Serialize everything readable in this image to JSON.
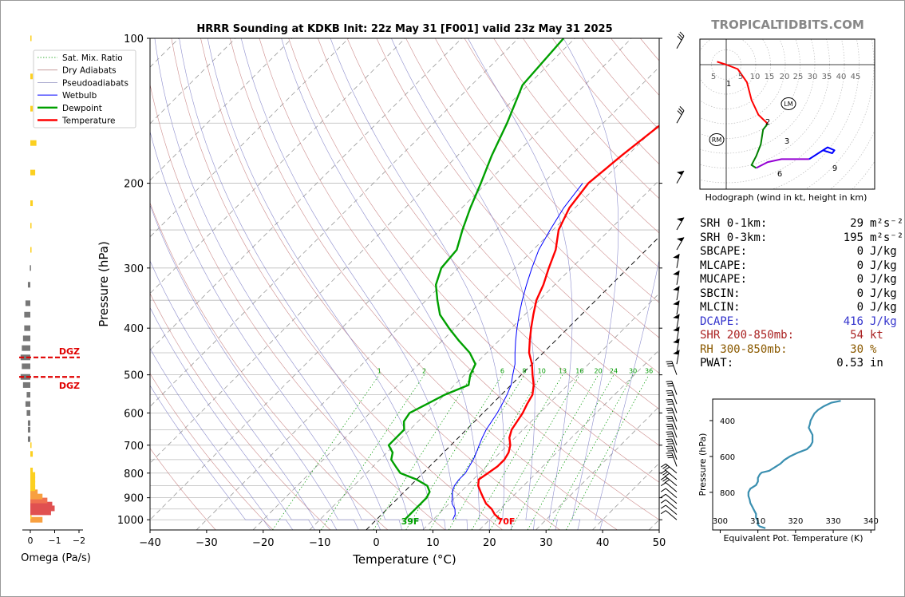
{
  "chart_data": [
    {
      "type": "skewt",
      "title": "HRRR Sounding at KDKB Init: 22z May 31 [F001] valid 23z May 31 2025",
      "xlabel": "Temperature (°C)",
      "ylabel": "Pressure (hPa)",
      "xlim": [
        -40,
        50
      ],
      "ylim": [
        1050,
        100
      ],
      "xticks": [
        "−40",
        "−30",
        "−20",
        "−10",
        "0",
        "10",
        "20",
        "30",
        "40",
        "50"
      ],
      "yticks": [
        "100",
        "200",
        "300",
        "400",
        "500",
        "600",
        "700",
        "800",
        "900",
        "1000"
      ],
      "legend": [
        "Sat. Mix. Ratio",
        "Dry Adiabats",
        "Pseudoadiabats",
        "Wetbulb",
        "Dewpoint",
        "Temperature"
      ],
      "legend_position": "top-left",
      "mixing_ratio_labels": [
        "1",
        "2",
        "4",
        "6",
        "8",
        "10",
        "13",
        "16",
        "20",
        "24",
        "30",
        "36"
      ],
      "temperature": {
        "p": [
          1000,
          975,
          950,
          925,
          900,
          875,
          850,
          825,
          800,
          775,
          750,
          725,
          700,
          675,
          650,
          625,
          600,
          575,
          550,
          525,
          500,
          475,
          450,
          425,
          400,
          375,
          350,
          325,
          300,
          275,
          250,
          225,
          200,
          175,
          150,
          125,
          100
        ],
        "t": [
          22,
          20,
          18.5,
          16.5,
          15,
          13.5,
          12,
          11,
          11.5,
          12,
          12,
          11.5,
          10.5,
          9,
          8,
          7.5,
          7,
          6.2,
          5.5,
          4,
          2,
          0,
          -2.5,
          -4.5,
          -6.5,
          -8.5,
          -10.5,
          -12,
          -14,
          -16,
          -19,
          -21,
          -22,
          -21,
          -19.5,
          -18.5,
          -16
        ]
      },
      "dewpoint": {
        "p": [
          1000,
          975,
          950,
          925,
          900,
          875,
          850,
          825,
          800,
          775,
          750,
          725,
          700,
          675,
          650,
          625,
          600,
          575,
          550,
          525,
          500,
          475,
          450,
          425,
          400,
          375,
          350,
          325,
          300,
          275,
          250,
          225,
          200,
          175,
          150,
          125,
          100
        ],
        "td": [
          5,
          5,
          5,
          5,
          5,
          4.5,
          3,
          0,
          -4,
          -6,
          -8,
          -9,
          -11,
          -11,
          -11,
          -12.5,
          -13,
          -11.5,
          -10,
          -7.5,
          -9,
          -10,
          -13,
          -17,
          -21,
          -25,
          -28,
          -31,
          -33,
          -33.5,
          -36,
          -38.5,
          -41,
          -44,
          -47,
          -51,
          -52
        ]
      },
      "wetbulb": {
        "p": [
          1000,
          975,
          950,
          925,
          900,
          875,
          850,
          825,
          800,
          775,
          750,
          725,
          700,
          675,
          650,
          625,
          600,
          575,
          550,
          525,
          500,
          475,
          450,
          425,
          400,
          375,
          350,
          325,
          300,
          275,
          250,
          225,
          200
        ],
        "tw": [
          13.5,
          13,
          12,
          10.5,
          9.5,
          8.5,
          7.8,
          7.5,
          7.5,
          7,
          6.5,
          5.8,
          5,
          4.2,
          3.5,
          3,
          2.5,
          1.8,
          1,
          0,
          -1.5,
          -3,
          -5,
          -7,
          -9,
          -11,
          -13,
          -15,
          -17,
          -19,
          -20.5,
          -22,
          -23
        ]
      },
      "surface_temperature_label": "70F",
      "surface_dewpoint_label": "39F"
    },
    {
      "type": "bar",
      "title": "",
      "xlabel": "Omega (Pa/s)",
      "xticks": [
        "0",
        "−1",
        "−2"
      ],
      "xlim": [
        0.1,
        -2.3
      ],
      "annotations": [
        "DGZ",
        "DGZ"
      ],
      "dgz_pressure": [
        460,
        505
      ],
      "omega": {
        "p": [
          1000,
          982,
          965,
          947,
          930,
          912,
          895,
          877,
          860,
          842,
          825,
          807,
          790,
          730,
          700,
          680,
          650,
          630,
          600,
          575,
          550,
          525,
          505,
          480,
          460,
          440,
          420,
          400,
          375,
          355,
          325,
          300,
          275,
          245,
          220,
          190,
          165,
          140,
          120,
          100
        ],
        "values": [
          -0.5,
          -0.05,
          -0.85,
          -1.0,
          -0.9,
          -0.7,
          -0.5,
          -0.3,
          -0.2,
          -0.2,
          -0.2,
          -0.2,
          -0.1,
          -0.1,
          -0.05,
          0.1,
          0.1,
          0.1,
          0.15,
          0.2,
          0.15,
          0.3,
          0.4,
          0.35,
          0.4,
          0.35,
          0.3,
          0.25,
          0.25,
          0.2,
          0.1,
          0.02,
          -0.05,
          -0.05,
          -0.1,
          -0.2,
          -0.25,
          -0.1,
          -0.1,
          -0.05
        ]
      }
    },
    {
      "type": "line",
      "title": "Equivalent Pot. Temperature (K)",
      "xlabel": "Equivalent Pot. Temperature (K)",
      "ylabel": "Pressure (hPa)",
      "xlim": [
        298,
        341
      ],
      "ylim": [
        1010,
        280
      ],
      "xticks": [
        "300",
        "310",
        "320",
        "330",
        "340"
      ],
      "yticks": [
        "400",
        "600",
        "800"
      ],
      "color": "#3a8fb0",
      "p": [
        1000,
        990,
        980,
        960,
        940,
        920,
        900,
        880,
        860,
        840,
        820,
        800,
        780,
        760,
        740,
        720,
        700,
        690,
        680,
        660,
        640,
        620,
        600,
        580,
        560,
        540,
        520,
        500,
        480,
        460,
        440,
        420,
        400,
        380,
        360,
        340,
        320,
        300,
        290
      ],
      "theta_e": [
        312,
        310.5,
        310,
        310,
        309.5,
        309.5,
        309,
        308.5,
        308,
        307.8,
        307.5,
        307.5,
        308,
        309.5,
        310,
        310,
        310.5,
        311,
        313,
        314.5,
        316,
        317,
        318.5,
        320.5,
        323,
        324,
        324.5,
        324.5,
        324.5,
        324,
        323.5,
        323.8,
        324,
        324.5,
        325,
        326,
        327.5,
        329.5,
        332
      ]
    },
    {
      "type": "hodograph",
      "title": "Hodograph (wind in kt, height in km)",
      "ring_labels": [
        "5",
        "5",
        "10",
        "15",
        "20",
        "25",
        "30",
        "35",
        "40",
        "45"
      ],
      "height_labels": [
        "1",
        "2",
        "3",
        "6",
        "9"
      ],
      "markers": [
        "LM",
        "RM"
      ],
      "segments": [
        {
          "color": "#ff0000",
          "points": [
            [
              -4,
              1
            ],
            [
              0,
              0
            ],
            [
              5,
              -1.5
            ],
            [
              9,
              -6
            ],
            [
              11,
              -12
            ],
            [
              14,
              -17
            ],
            [
              18,
              -20
            ]
          ]
        },
        {
          "color": "#008000",
          "points": [
            [
              18,
              -20
            ],
            [
              16,
              -22
            ],
            [
              15,
              -27
            ],
            [
              13,
              -31
            ],
            [
              11,
              -34
            ],
            [
              13,
              -35
            ]
          ]
        },
        {
          "color": "#9400d3",
          "points": [
            [
              13,
              -35
            ],
            [
              18,
              -33
            ],
            [
              24,
              -32
            ],
            [
              30,
              -32
            ],
            [
              36,
              -32
            ]
          ]
        },
        {
          "color": "#0000ff",
          "points": [
            [
              36,
              -32
            ],
            [
              40,
              -30
            ],
            [
              44,
              -28
            ],
            [
              47,
              -29
            ],
            [
              46,
              -30
            ],
            [
              42,
              -29
            ]
          ]
        }
      ],
      "lm": [
        21,
        -12
      ],
      "rm": [
        -3,
        -23
      ]
    }
  ],
  "page": {
    "brand": "TROPICALTIDBITS.COM",
    "hodo_caption": "Hodograph (wind in kt, height in km)",
    "theta_e_xlabel": "Equivalent Pot. Temperature (K)",
    "theta_e_ylabel": "Pressure (hPa)"
  },
  "indices": [
    {
      "label": "SRH 0-1km:",
      "value": "29",
      "unit": "m²s⁻²",
      "color": "#000000"
    },
    {
      "label": "SRH 0-3km:",
      "value": "195",
      "unit": "m²s⁻²",
      "color": "#000000"
    },
    {
      "label": "SBCAPE:",
      "value": "0",
      "unit": "J/kg",
      "color": "#000000"
    },
    {
      "label": "MLCAPE:",
      "value": "0",
      "unit": "J/kg",
      "color": "#000000"
    },
    {
      "label": "MUCAPE:",
      "value": "0",
      "unit": "J/kg",
      "color": "#000000"
    },
    {
      "label": "SBCIN:",
      "value": "0",
      "unit": "J/kg",
      "color": "#000000"
    },
    {
      "label": "MLCIN:",
      "value": "0",
      "unit": "J/kg",
      "color": "#000000"
    },
    {
      "label": "DCAPE:",
      "value": "416",
      "unit": "J/kg",
      "color": "#3333cc"
    },
    {
      "label": "SHR 200-850mb:",
      "value": "54",
      "unit": "kt",
      "color": "#aa2222"
    },
    {
      "label": "RH 300-850mb:",
      "value": "30",
      "unit": "%",
      "color": "#8b5a00"
    },
    {
      "label": "PWAT:",
      "value": "0.53",
      "unit": "in",
      "color": "#000000"
    }
  ],
  "colors": {
    "temperature": "#ff0000",
    "dewpoint": "#00a000",
    "wetbulb": "#0000ff",
    "dry_adiabat": "#c07070",
    "pseudoadiabat": "#7070c0",
    "mixing_ratio": "#009900",
    "isotherm": "#888888"
  }
}
